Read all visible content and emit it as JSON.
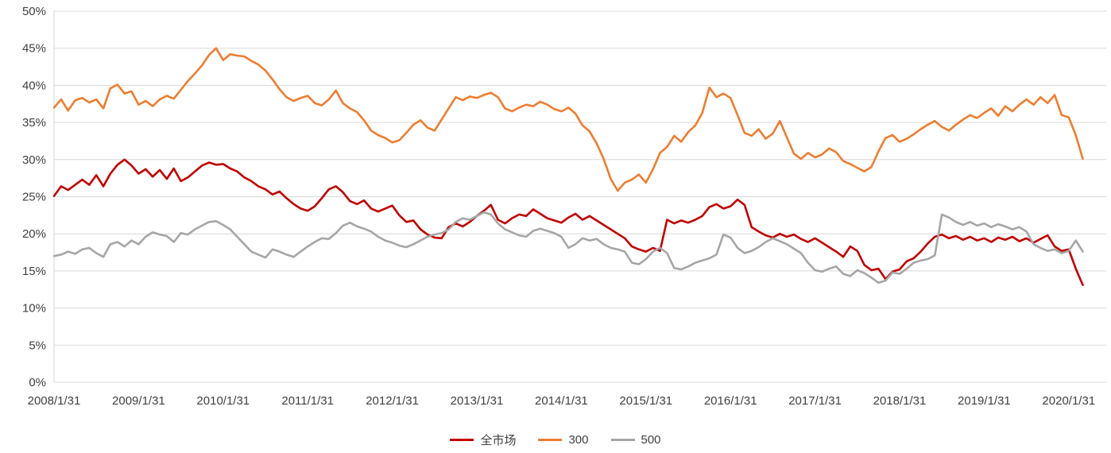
{
  "chart_data": {
    "type": "line",
    "title": "",
    "background_color": "#ffffff",
    "grid": "horizontal",
    "grid_color": "#d9d9d9",
    "axis_text_color": "#404040",
    "x_axis": {
      "frequency": "monthly",
      "start": "2008/1/31",
      "end": "2020/3/31",
      "points_per_tick": 12,
      "tick_labels": [
        "2008/1/31",
        "2009/1/31",
        "2010/1/31",
        "2011/1/31",
        "2012/1/31",
        "2013/1/31",
        "2014/1/31",
        "2015/1/31",
        "2016/1/31",
        "2017/1/31",
        "2018/1/31",
        "2019/1/31",
        "2020/1/31"
      ]
    },
    "y_axis": {
      "min": 0,
      "max": 50,
      "step": 5,
      "unit": "%",
      "tick_labels": [
        "0%",
        "5%",
        "10%",
        "15%",
        "20%",
        "25%",
        "30%",
        "35%",
        "40%",
        "45%",
        "50%"
      ]
    },
    "legend": {
      "position": "bottom",
      "entries": [
        "全市场",
        "300",
        "500"
      ]
    },
    "series": [
      {
        "name": "全市场",
        "color": "#c00000",
        "values": [
          25.1,
          26.4,
          25.9,
          26.6,
          27.3,
          26.6,
          27.9,
          26.4,
          28.1,
          29.3,
          30.0,
          29.2,
          28.1,
          28.7,
          27.7,
          28.6,
          27.4,
          28.8,
          27.1,
          27.6,
          28.4,
          29.2,
          29.6,
          29.3,
          29.4,
          28.8,
          28.4,
          27.6,
          27.1,
          26.4,
          26.0,
          25.3,
          25.7,
          24.8,
          24.0,
          23.4,
          23.1,
          23.7,
          24.8,
          26.0,
          26.4,
          25.6,
          24.4,
          24.0,
          24.5,
          23.4,
          23.0,
          23.4,
          23.8,
          22.5,
          21.6,
          21.8,
          20.6,
          19.9,
          19.5,
          19.4,
          20.9,
          21.4,
          21.0,
          21.6,
          22.4,
          23.1,
          23.9,
          21.9,
          21.4,
          22.1,
          22.6,
          22.4,
          23.3,
          22.7,
          22.1,
          21.8,
          21.5,
          22.2,
          22.7,
          21.9,
          22.4,
          21.8,
          21.2,
          20.6,
          20.0,
          19.4,
          18.3,
          17.9,
          17.6,
          18.1,
          17.7,
          21.9,
          21.4,
          21.8,
          21.5,
          21.9,
          22.4,
          23.6,
          24.0,
          23.4,
          23.7,
          24.6,
          23.9,
          20.9,
          20.3,
          19.8,
          19.5,
          20.0,
          19.6,
          19.9,
          19.3,
          18.9,
          19.4,
          18.8,
          18.2,
          17.6,
          16.9,
          18.3,
          17.7,
          15.8,
          15.1,
          15.3,
          13.9,
          14.9,
          15.2,
          16.3,
          16.7,
          17.6,
          18.7,
          19.6,
          19.9,
          19.4,
          19.7,
          19.2,
          19.6,
          19.1,
          19.4,
          18.9,
          19.5,
          19.2,
          19.6,
          19.0,
          19.4,
          18.8,
          19.3,
          19.8,
          18.3,
          17.7,
          17.9,
          15.3,
          13.1
        ]
      },
      {
        "name": "300",
        "color": "#ed7d31",
        "values": [
          37.0,
          38.1,
          36.6,
          38.0,
          38.3,
          37.7,
          38.1,
          36.9,
          39.6,
          40.1,
          38.9,
          39.2,
          37.4,
          37.9,
          37.2,
          38.1,
          38.6,
          38.2,
          39.4,
          40.6,
          41.6,
          42.7,
          44.1,
          45.0,
          43.4,
          44.2,
          44.0,
          43.9,
          43.3,
          42.8,
          42.0,
          40.8,
          39.5,
          38.4,
          37.9,
          38.3,
          38.6,
          37.6,
          37.3,
          38.1,
          39.3,
          37.6,
          36.9,
          36.4,
          35.3,
          33.9,
          33.3,
          32.9,
          32.3,
          32.6,
          33.6,
          34.7,
          35.3,
          34.3,
          33.9,
          35.4,
          36.9,
          38.4,
          38.0,
          38.5,
          38.3,
          38.7,
          39.0,
          38.4,
          36.9,
          36.5,
          37.0,
          37.4,
          37.2,
          37.8,
          37.4,
          36.8,
          36.5,
          37.0,
          36.2,
          34.6,
          33.8,
          32.2,
          30.1,
          27.4,
          25.8,
          26.9,
          27.3,
          28.0,
          26.9,
          28.7,
          30.9,
          31.7,
          33.2,
          32.4,
          33.7,
          34.6,
          36.3,
          39.7,
          38.4,
          38.9,
          38.3,
          36.0,
          33.6,
          33.2,
          34.1,
          32.8,
          33.5,
          35.2,
          33.0,
          30.8,
          30.1,
          30.9,
          30.3,
          30.7,
          31.5,
          31.0,
          29.8,
          29.4,
          28.9,
          28.4,
          29.0,
          31.1,
          32.9,
          33.3,
          32.4,
          32.8,
          33.4,
          34.1,
          34.7,
          35.2,
          34.4,
          33.9,
          34.7,
          35.4,
          36.0,
          35.6,
          36.3,
          36.9,
          35.9,
          37.2,
          36.5,
          37.4,
          38.1,
          37.4,
          38.4,
          37.6,
          38.7,
          36.0,
          35.7,
          33.3,
          30.1
        ]
      },
      {
        "name": "500",
        "color": "#a6a6a6",
        "values": [
          17.0,
          17.2,
          17.6,
          17.3,
          17.9,
          18.1,
          17.4,
          16.9,
          18.6,
          18.9,
          18.3,
          19.1,
          18.6,
          19.6,
          20.2,
          19.9,
          19.7,
          18.9,
          20.1,
          19.9,
          20.6,
          21.1,
          21.6,
          21.7,
          21.2,
          20.6,
          19.6,
          18.6,
          17.6,
          17.2,
          16.8,
          17.9,
          17.6,
          17.2,
          16.9,
          17.6,
          18.3,
          18.9,
          19.4,
          19.3,
          20.1,
          21.1,
          21.5,
          21.0,
          20.7,
          20.3,
          19.6,
          19.1,
          18.8,
          18.4,
          18.2,
          18.6,
          19.1,
          19.6,
          19.9,
          20.1,
          20.6,
          21.6,
          22.1,
          21.9,
          22.4,
          22.9,
          22.6,
          21.4,
          20.6,
          20.2,
          19.8,
          19.6,
          20.4,
          20.7,
          20.4,
          20.1,
          19.6,
          18.1,
          18.6,
          19.4,
          19.1,
          19.3,
          18.6,
          18.1,
          17.9,
          17.6,
          16.1,
          15.9,
          16.6,
          17.6,
          18.1,
          17.4,
          15.4,
          15.2,
          15.6,
          16.1,
          16.4,
          16.7,
          17.2,
          19.9,
          19.5,
          18.1,
          17.4,
          17.7,
          18.2,
          18.9,
          19.4,
          19.0,
          18.6,
          18.0,
          17.4,
          16.1,
          15.1,
          14.9,
          15.3,
          15.6,
          14.6,
          14.3,
          15.1,
          14.7,
          14.1,
          13.4,
          13.7,
          14.8,
          14.6,
          15.3,
          16.1,
          16.4,
          16.6,
          17.1,
          22.6,
          22.2,
          21.6,
          21.2,
          21.6,
          21.1,
          21.4,
          20.9,
          21.3,
          21.0,
          20.6,
          20.9,
          20.3,
          18.6,
          18.1,
          17.7,
          17.9,
          17.4,
          17.7,
          19.1,
          17.6
        ]
      }
    ]
  }
}
